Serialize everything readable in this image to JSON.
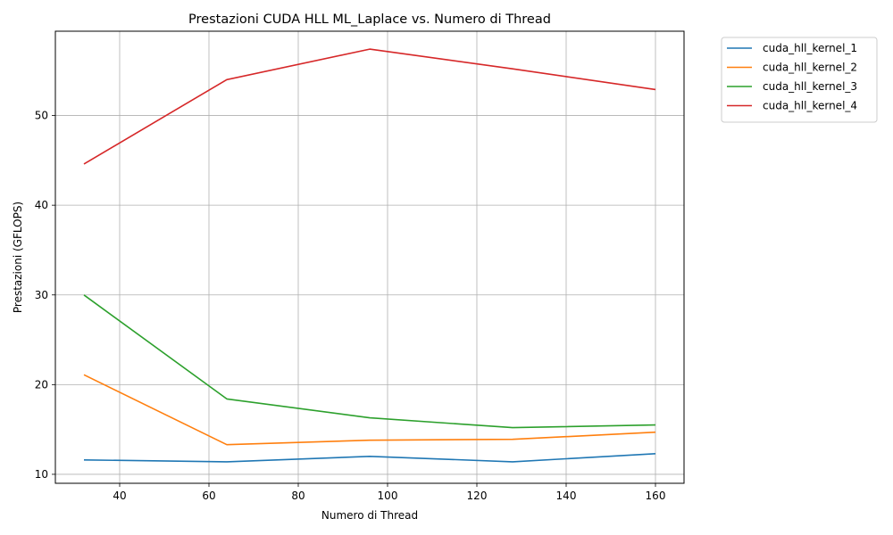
{
  "chart_data": {
    "type": "line",
    "title": "Prestazioni CUDA HLL ML_Laplace vs. Numero di Thread",
    "xlabel": "Numero di Thread",
    "ylabel": "Prestazioni (GFLOPS)",
    "x": [
      32,
      64,
      96,
      128,
      160
    ],
    "xlim": [
      25.6,
      166.4
    ],
    "ylim": [
      9.0,
      59.4
    ],
    "xticks": [
      40,
      60,
      80,
      100,
      120,
      140,
      160
    ],
    "yticks": [
      10,
      20,
      30,
      40,
      50
    ],
    "grid": true,
    "legend_position": "outside-top-right",
    "series": [
      {
        "name": "cuda_hll_kernel_1",
        "color": "#1f77b4",
        "values": [
          11.6,
          11.4,
          12.0,
          11.4,
          12.3
        ]
      },
      {
        "name": "cuda_hll_kernel_2",
        "color": "#ff7f0e",
        "values": [
          21.1,
          13.3,
          13.8,
          13.9,
          14.7
        ]
      },
      {
        "name": "cuda_hll_kernel_3",
        "color": "#2ca02c",
        "values": [
          30.0,
          18.4,
          16.3,
          15.2,
          15.5
        ]
      },
      {
        "name": "cuda_hll_kernel_4",
        "color": "#d62728",
        "values": [
          44.6,
          54.0,
          57.4,
          55.2,
          52.9
        ]
      }
    ]
  }
}
